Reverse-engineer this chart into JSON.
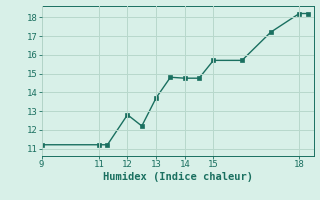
{
  "x": [
    9,
    11,
    11.3,
    12,
    12.5,
    13,
    13.5,
    14,
    14.5,
    15,
    16,
    17,
    18,
    18.3
  ],
  "y": [
    11.2,
    11.2,
    11.2,
    12.8,
    12.2,
    13.7,
    14.8,
    14.75,
    14.75,
    15.7,
    15.7,
    17.2,
    18.2,
    18.2
  ],
  "line_color": "#1a7060",
  "marker_color": "#1a7060",
  "bg_color": "#d8f0e8",
  "grid_color": "#b8d8cc",
  "xlabel": "Humidex (Indice chaleur)",
  "xlim": [
    9,
    18.5
  ],
  "ylim": [
    10.6,
    18.6
  ],
  "xticks": [
    9,
    11,
    12,
    13,
    14,
    15,
    18
  ],
  "yticks": [
    11,
    12,
    13,
    14,
    15,
    16,
    17,
    18
  ],
  "tick_color": "#1a7060",
  "label_fontsize": 7.5,
  "tick_fontsize": 6.5
}
